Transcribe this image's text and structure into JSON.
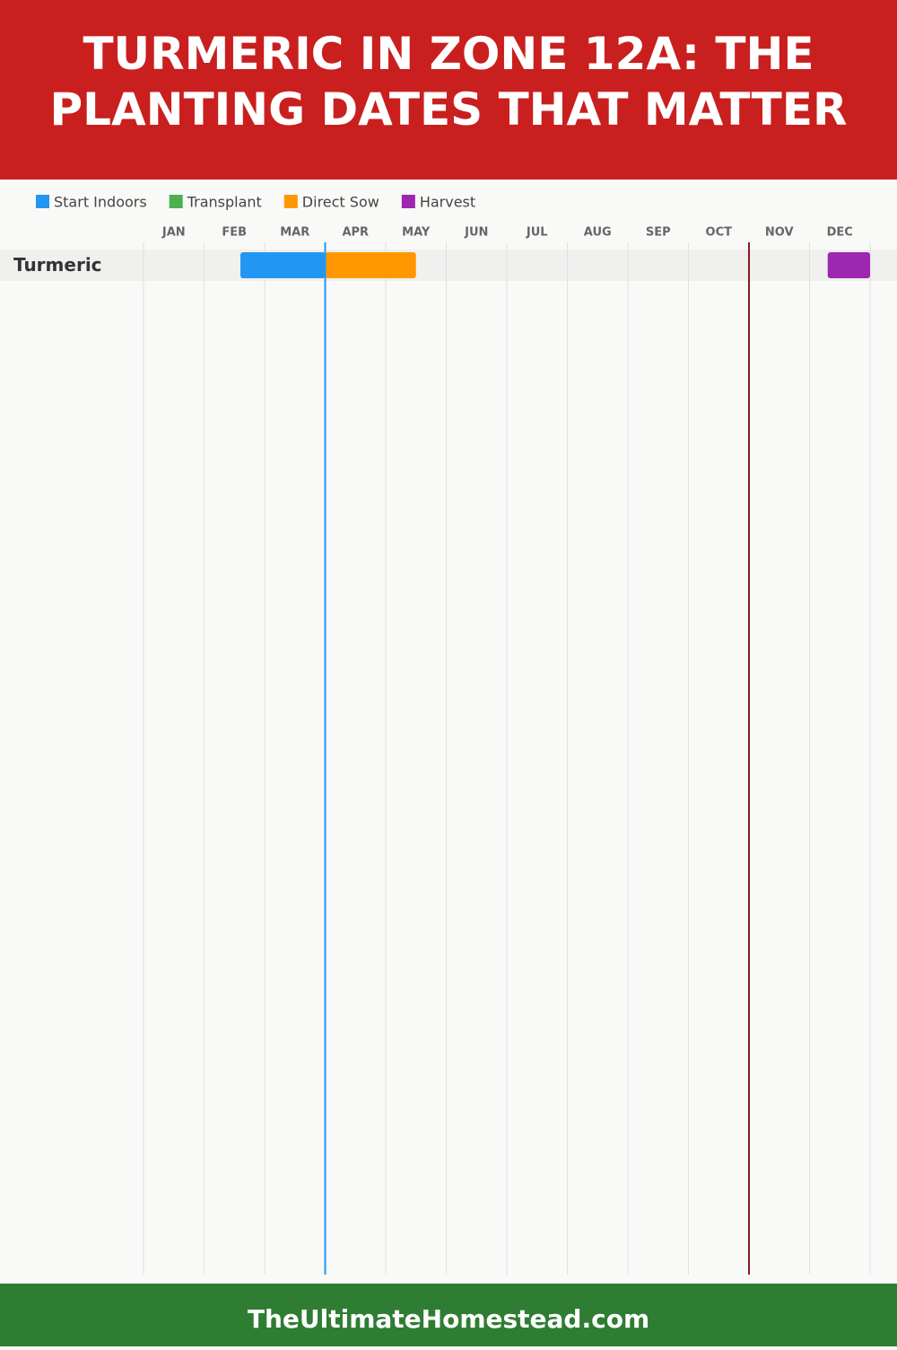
{
  "chart_data": {
    "type": "gantt",
    "title": "TURMERIC IN ZONE 12A: THE PLANTING DATES THAT MATTER",
    "categories": [
      "Turmeric"
    ],
    "months": [
      "JAN",
      "FEB",
      "MAR",
      "APR",
      "MAY",
      "JUN",
      "JUL",
      "AUG",
      "SEP",
      "OCT",
      "NOV",
      "DEC"
    ],
    "xlim": [
      0,
      12
    ],
    "xticks": [
      0,
      1,
      2,
      3,
      4,
      5,
      6,
      7,
      8,
      9,
      10,
      11,
      12
    ],
    "grid": true,
    "series": [
      {
        "name": "Start Indoors",
        "color": "#2196f3",
        "values": [
          [
            1.6,
            3.0
          ]
        ]
      },
      {
        "name": "Transplant",
        "color": "#4caf50",
        "values": [
          null
        ]
      },
      {
        "name": "Direct Sow",
        "color": "#ff9800",
        "values": [
          [
            3.0,
            4.5
          ]
        ]
      },
      {
        "name": "Harvest",
        "color": "#9c27b0",
        "values": [
          [
            11.3,
            12.0
          ]
        ]
      }
    ],
    "markers": [
      {
        "value": 3.0,
        "color": "#2196f3"
      },
      {
        "value": 10.0,
        "color": "#8b1a1a"
      }
    ]
  },
  "footer": "TheUltimateHomestead.com"
}
